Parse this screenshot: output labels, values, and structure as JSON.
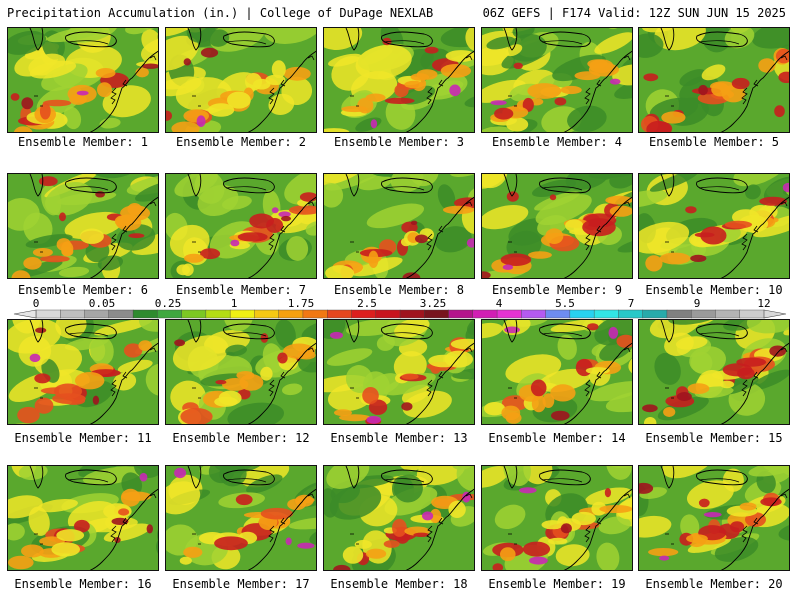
{
  "header": {
    "left": "Precipitation Accumulation (in.) | College of DuPage NEXLAB",
    "right": "06Z GEFS | F174 Valid: 12Z SUN JUN 15 2025"
  },
  "colorbar": {
    "labels": [
      "0",
      "0.05",
      "0.25",
      "1",
      "1.75",
      "2.5",
      "3.25",
      "4",
      "5.5",
      "7",
      "9",
      "12"
    ],
    "colors": [
      "#d9d9d9",
      "#bfbfbf",
      "#a6a6a6",
      "#8c8c8c",
      "#2e8b2e",
      "#3fa83f",
      "#7cc823",
      "#b4dc14",
      "#f0f014",
      "#f5c814",
      "#f5a00f",
      "#f07814",
      "#e6461e",
      "#dc1e1e",
      "#c8141e",
      "#a0141e",
      "#78141e",
      "#b4148c",
      "#d21eb4",
      "#e632d2",
      "#b45af0",
      "#6e8cf0",
      "#28d2f0",
      "#32e6e6",
      "#28c8c8",
      "#28aaaa",
      "#808080",
      "#9a9a9a",
      "#b4b4b4",
      "#cdcdcd"
    ]
  },
  "palette": {
    "dark_green": "#3c8c28",
    "green": "#5aa82d",
    "light_green": "#a0d232",
    "yellow": "#f0e628",
    "orange": "#f5a014",
    "red_orange": "#e6501e",
    "red": "#c81e1e",
    "dark_red": "#a0141e",
    "magenta": "#c828b4",
    "violet": "#a05af0",
    "blue": "#64a0f0"
  },
  "panels": [
    {
      "member": "Ensemble Member: 1"
    },
    {
      "member": "Ensemble Member: 2"
    },
    {
      "member": "Ensemble Member: 3"
    },
    {
      "member": "Ensemble Member: 4"
    },
    {
      "member": "Ensemble Member: 5"
    },
    {
      "member": "Ensemble Member: 6"
    },
    {
      "member": "Ensemble Member: 7"
    },
    {
      "member": "Ensemble Member: 8"
    },
    {
      "member": "Ensemble Member: 9"
    },
    {
      "member": "Ensemble Member: 10"
    },
    {
      "member": "Ensemble Member: 11"
    },
    {
      "member": "Ensemble Member: 12"
    },
    {
      "member": "Ensemble Member: 13"
    },
    {
      "member": "Ensemble Member: 14"
    },
    {
      "member": "Ensemble Member: 15"
    },
    {
      "member": "Ensemble Member: 16"
    },
    {
      "member": "Ensemble Member: 17"
    },
    {
      "member": "Ensemble Member: 18"
    },
    {
      "member": "Ensemble Member: 19"
    },
    {
      "member": "Ensemble Member: 20"
    }
  ]
}
